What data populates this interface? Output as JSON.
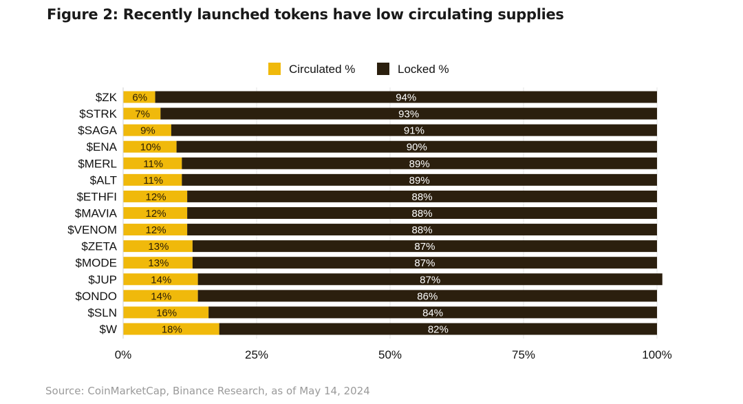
{
  "title": "Figure 2: Recently launched tokens have low circulating supplies",
  "source": "Source: CoinMarketCap, Binance Research, as of May 14, 2024",
  "colors": {
    "circulated": "#F0B90B",
    "locked": "#2B1F0E",
    "grid": "#e6e6e6"
  },
  "chart_data": {
    "type": "bar",
    "orientation": "horizontal",
    "stacked": true,
    "categories": [
      "$ZK",
      "$STRK",
      "$SAGA",
      "$ENA",
      "$MERL",
      "$ALT",
      "$ETHFI",
      "$MAVIA",
      "$VENOM",
      "$ZETA",
      "$MODE",
      "$JUP",
      "$ONDO",
      "$SLN",
      "$W"
    ],
    "series": [
      {
        "name": "Circulated %",
        "values": [
          6,
          7,
          9,
          10,
          11,
          11,
          12,
          12,
          12,
          13,
          13,
          14,
          14,
          16,
          18
        ]
      },
      {
        "name": "Locked %",
        "values": [
          94,
          93,
          91,
          90,
          89,
          89,
          88,
          88,
          88,
          87,
          87,
          87,
          86,
          84,
          82
        ]
      }
    ],
    "xlim": [
      0,
      100
    ],
    "xticks": [
      0,
      25,
      50,
      75,
      100
    ],
    "xtick_labels": [
      "0%",
      "25%",
      "50%",
      "75%",
      "100%"
    ],
    "legend_position": "top-center",
    "grid": true
  }
}
